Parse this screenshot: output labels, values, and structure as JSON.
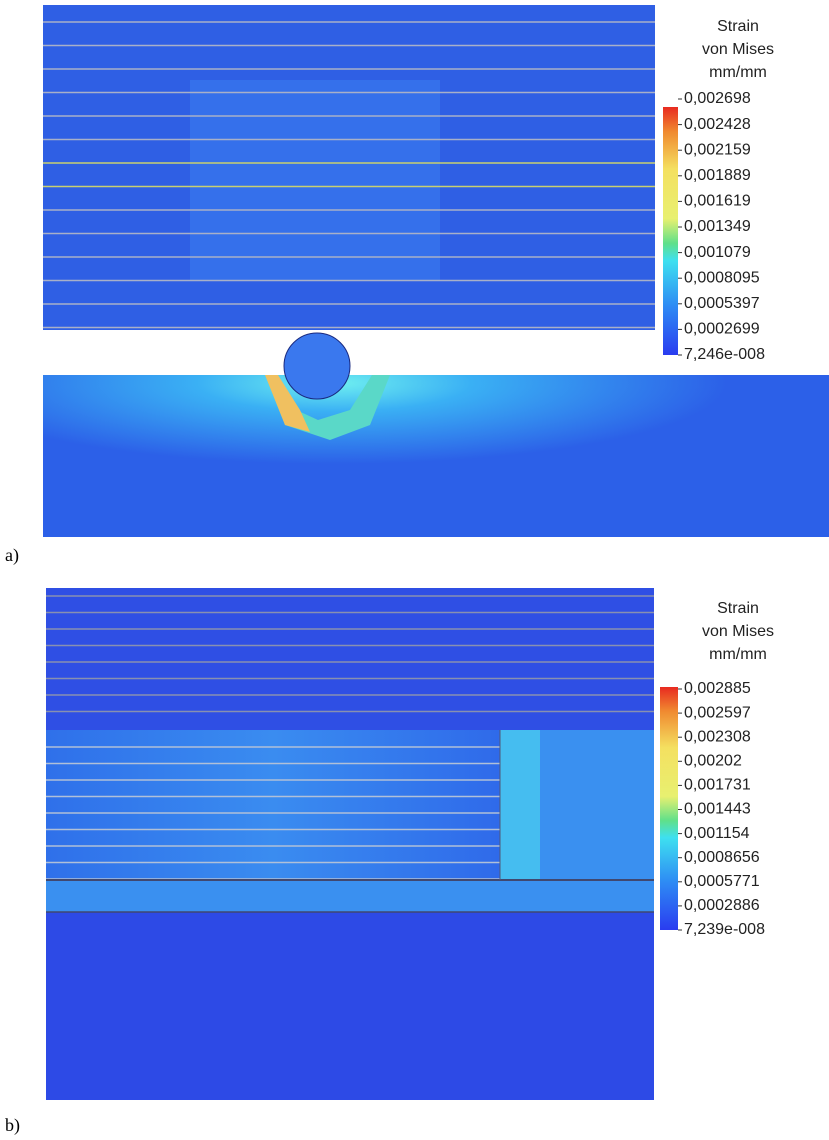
{
  "panels": [
    {
      "label": "a)",
      "legend": {
        "title": [
          "Strain",
          "von Mises",
          "mm/mm"
        ],
        "ticks": [
          "0,002698",
          "0,002428",
          "0,002159",
          "0,001889",
          "0,001619",
          "0,001349",
          "0,001079",
          "0,0008095",
          "0,0005397",
          "0,0002699",
          "7,246e-008"
        ]
      }
    },
    {
      "label": "b)",
      "legend": {
        "title": [
          "Strain",
          "von Mises",
          "mm/mm"
        ],
        "ticks": [
          "0,002885",
          "0,002597",
          "0,002308",
          "0,00202",
          "0,001731",
          "0,001443",
          "0,001154",
          "0,0008656",
          "0,0005771",
          "0,0002886",
          "7,239e-008"
        ]
      }
    }
  ]
}
